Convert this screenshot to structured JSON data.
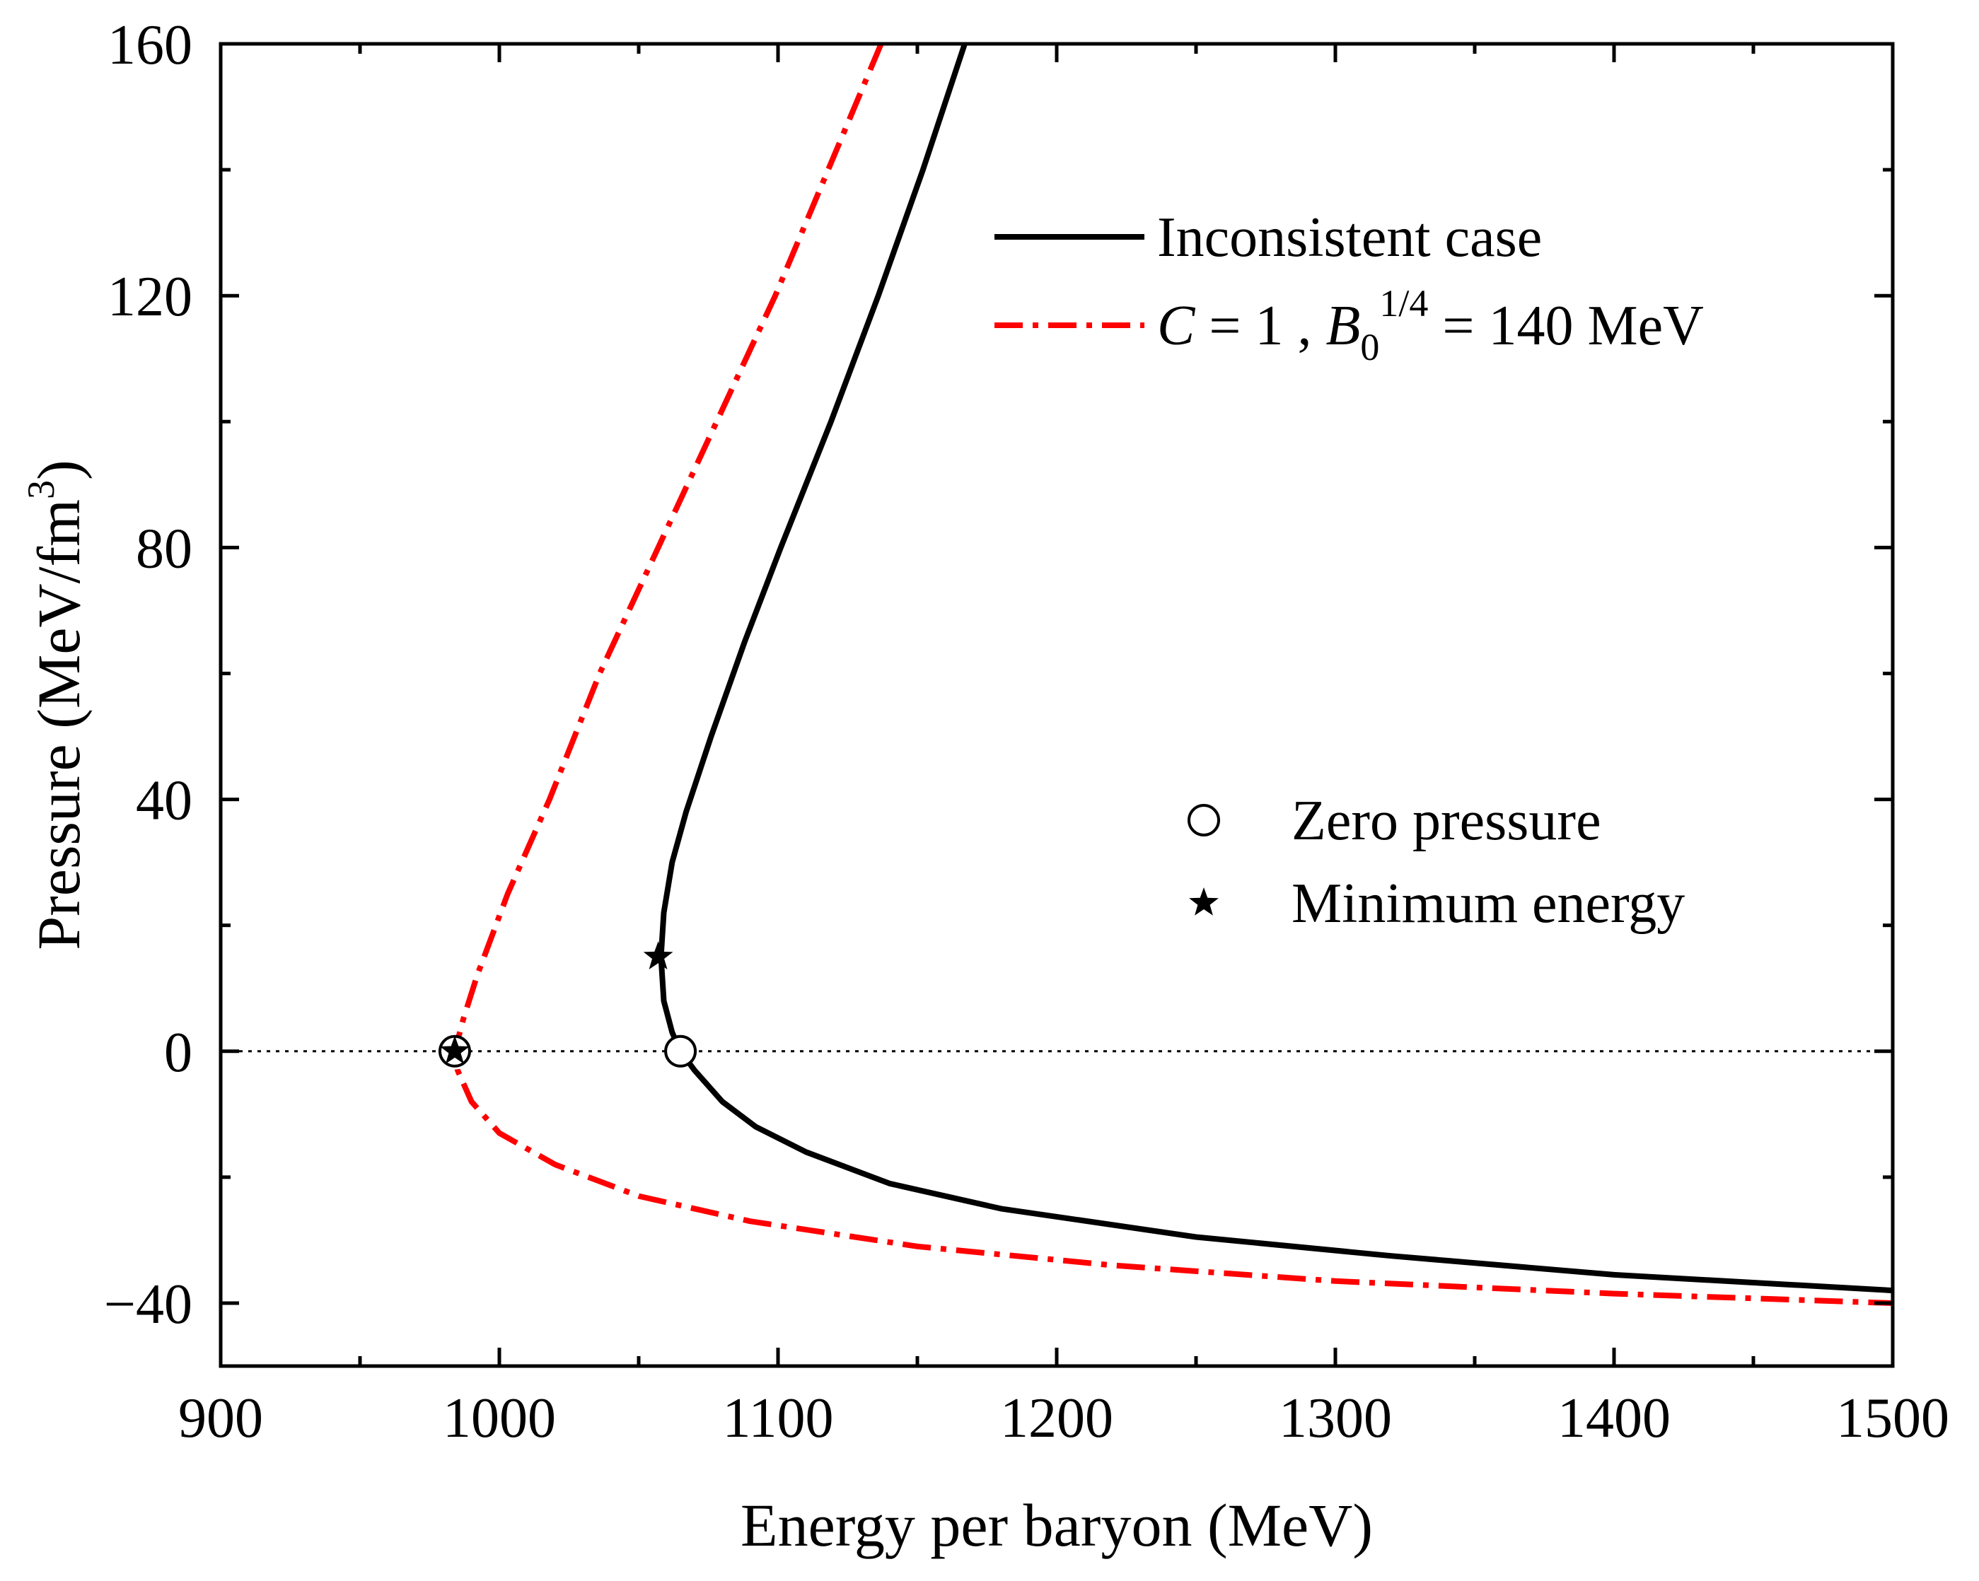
{
  "chart_data": {
    "type": "line",
    "xlabel": "Energy per baryon (MeV)",
    "ylabel": {
      "main": "Pressure (MeV/fm",
      "sup": "3",
      "close": ")"
    },
    "xlim": [
      900,
      1500
    ],
    "ylim": [
      -50,
      160
    ],
    "xticks": [
      "900",
      "1000",
      "1100",
      "1200",
      "1300",
      "1400",
      "1500"
    ],
    "xtick_values": [
      900,
      1000,
      1100,
      1200,
      1300,
      1400,
      1500
    ],
    "yticks": [
      "−40",
      "0",
      "40",
      "80",
      "120",
      "160"
    ],
    "ytick_values": [
      -40,
      0,
      40,
      80,
      120,
      160
    ],
    "zero_line": 0,
    "series": [
      {
        "name": "Inconsistent case",
        "color": "#000000",
        "style": "solid",
        "points": [
          [
            1167,
            160
          ],
          [
            1152,
            140
          ],
          [
            1136,
            120
          ],
          [
            1119,
            100
          ],
          [
            1101,
            80
          ],
          [
            1088,
            65
          ],
          [
            1076,
            50
          ],
          [
            1067,
            38
          ],
          [
            1062,
            30
          ],
          [
            1059,
            22
          ],
          [
            1058,
            15
          ],
          [
            1059,
            8
          ],
          [
            1062,
            3
          ],
          [
            1065,
            0
          ],
          [
            1070,
            -3
          ],
          [
            1080,
            -8
          ],
          [
            1092,
            -12
          ],
          [
            1110,
            -16
          ],
          [
            1140,
            -21
          ],
          [
            1180,
            -25
          ],
          [
            1250,
            -29.5
          ],
          [
            1320,
            -32.5
          ],
          [
            1400,
            -35.5
          ],
          [
            1460,
            -37
          ],
          [
            1500,
            -38
          ]
        ]
      },
      {
        "name": "C = 1 , B0 1/4 = 140 MeV",
        "color": "#ff0000",
        "style": "dashdot",
        "points": [
          [
            1137,
            160
          ],
          [
            1118,
            140
          ],
          [
            1099,
            120
          ],
          [
            1078,
            100
          ],
          [
            1057,
            80
          ],
          [
            1036,
            60
          ],
          [
            1018,
            40
          ],
          [
            1003,
            25
          ],
          [
            992,
            12
          ],
          [
            987,
            5
          ],
          [
            984,
            0
          ],
          [
            985,
            -3
          ],
          [
            990,
            -8
          ],
          [
            1000,
            -13
          ],
          [
            1020,
            -18
          ],
          [
            1050,
            -23
          ],
          [
            1090,
            -27
          ],
          [
            1150,
            -31
          ],
          [
            1220,
            -34
          ],
          [
            1300,
            -36.5
          ],
          [
            1400,
            -38.5
          ],
          [
            1500,
            -40
          ]
        ]
      }
    ],
    "markers": [
      {
        "series": "Inconsistent case",
        "kind": "zero-pressure",
        "x": 1065,
        "y": 0
      },
      {
        "series": "Inconsistent case",
        "kind": "minimum-energy",
        "x": 1057,
        "y": 15
      },
      {
        "series": "C = 1 , B0 1/4 = 140 MeV",
        "kind": "zero-pressure",
        "x": 984,
        "y": 0
      },
      {
        "series": "C = 1 , B0 1/4 = 140 MeV",
        "kind": "minimum-energy",
        "x": 984,
        "y": 0
      }
    ],
    "legend": {
      "lines": [
        {
          "label": "Inconsistent case"
        },
        {
          "label_parts": {
            "c": "C",
            "eq1": " = 1 , ",
            "b": "B",
            "sub": "0",
            "sup": "1/4",
            "rest": " = 140 MeV"
          }
        }
      ],
      "symbols": [
        {
          "symbol": "circle",
          "label": "Zero pressure"
        },
        {
          "symbol": "star",
          "label": "Minimum energy"
        }
      ]
    }
  }
}
